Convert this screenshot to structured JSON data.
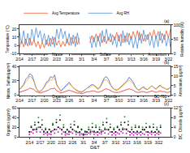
{
  "chart_data": [
    {
      "type": "line",
      "annotations": [
        "(a)"
      ],
      "y_label": "Temperature (°C)",
      "y2_label": "Relative humidity (%)",
      "categories": [
        "2/14",
        null,
        null,
        null,
        null,
        null,
        "2/17",
        null,
        null,
        null,
        null,
        null,
        "2/20",
        null,
        null,
        null,
        null,
        null,
        "2/23",
        null,
        null,
        null,
        null,
        null,
        "2/26",
        null,
        null,
        null,
        null,
        null,
        "3/1",
        null,
        null,
        null,
        null,
        null,
        "3/4",
        null,
        null,
        null,
        null,
        null,
        "3/7",
        null,
        null,
        null,
        null,
        null,
        "3/10",
        null,
        null,
        null,
        null,
        null,
        "3/13",
        null,
        null,
        null,
        null,
        null,
        "3/16",
        null,
        null,
        null,
        null,
        null,
        "3/19",
        null,
        null,
        null,
        null,
        null,
        "3/22",
        null
      ],
      "ylim": [
        -10,
        25
      ],
      "yticks": [
        -10,
        0,
        10,
        20
      ],
      "y2lim": [
        0,
        100
      ],
      "y2ticks": [
        0,
        50,
        100
      ],
      "grid": false,
      "legend": "top",
      "series": [
        {
          "name": "Avg Temperature",
          "color": "#f05a28",
          "values": [
            -3,
            6,
            -2,
            8,
            -1,
            9,
            0,
            7,
            -2,
            5,
            -4,
            4,
            -3,
            7,
            -1,
            9,
            1,
            10,
            0,
            6,
            -2,
            5,
            -1,
            8,
            0,
            10,
            2,
            11,
            1,
            9,
            null,
            null,
            null,
            null,
            3,
            12,
            4,
            14,
            5,
            15,
            3,
            11,
            2,
            10,
            4,
            13,
            6,
            16,
            5,
            14,
            3,
            12,
            4,
            15,
            7,
            17,
            8,
            18,
            6,
            14,
            5,
            13,
            7,
            16,
            9,
            19,
            8,
            17,
            6,
            15,
            7,
            18,
            9,
            20
          ]
        },
        {
          "name": "Avg RH",
          "color": "#4a90d9",
          "axis": "y2",
          "values": [
            75,
            35,
            80,
            30,
            70,
            28,
            85,
            45,
            90,
            55,
            80,
            40,
            70,
            30,
            65,
            25,
            60,
            22,
            85,
            50,
            88,
            52,
            78,
            35,
            70,
            28,
            65,
            24,
            72,
            32,
            null,
            null,
            null,
            null,
            60,
            20,
            58,
            22,
            62,
            25,
            80,
            40,
            85,
            45,
            70,
            30,
            60,
            22,
            65,
            26,
            80,
            38,
            72,
            30,
            60,
            20,
            55,
            18,
            75,
            35,
            82,
            42,
            68,
            28,
            58,
            20,
            62,
            24,
            78,
            36,
            66,
            26,
            60,
            22
          ]
        }
      ]
    },
    {
      "type": "line",
      "annotations": [
        "(b)"
      ],
      "y_label": "Nitrate, Sulfate(μg/m³)",
      "y2_label": "Ammonium (μg/m³)",
      "categories": [
        "2/14",
        null,
        null,
        null,
        null,
        null,
        "2/17",
        null,
        null,
        null,
        null,
        null,
        "2/20",
        null,
        null,
        null,
        null,
        null,
        "2/23",
        null,
        null,
        null,
        null,
        null,
        "2/26",
        null,
        null,
        null,
        null,
        null,
        "3/1",
        null,
        null,
        null,
        null,
        null,
        "3/4",
        null,
        null,
        null,
        null,
        null,
        "3/7",
        null,
        null,
        null,
        null,
        null,
        "3/10",
        null,
        null,
        null,
        null,
        null,
        "3/13",
        null,
        null,
        null,
        null,
        null,
        "3/16",
        null,
        null,
        null,
        null,
        null,
        "3/19",
        null,
        null,
        null,
        null,
        null,
        "3/22",
        null
      ],
      "ylim": [
        0,
        40
      ],
      "yticks": [
        0,
        20,
        40
      ],
      "y2lim": [
        0,
        15
      ],
      "y2ticks": [
        0,
        5,
        10,
        15
      ],
      "grid": false,
      "legend": "top",
      "series": [
        {
          "name": "Nitrate",
          "color": "#3a5fcd",
          "values": [
            8,
            12,
            15,
            22,
            25,
            30,
            28,
            20,
            10,
            6,
            5,
            8,
            12,
            18,
            20,
            26,
            24,
            28,
            15,
            10,
            6,
            9,
            12,
            16,
            18,
            14,
            10,
            8,
            6,
            5,
            4,
            6,
            8,
            10,
            12,
            15,
            14,
            11,
            9,
            12,
            18,
            24,
            26,
            22,
            15,
            10,
            8,
            7,
            9,
            12,
            14,
            18,
            20,
            25,
            22,
            18,
            12,
            8,
            7,
            10,
            12,
            9,
            8,
            11,
            13,
            10,
            9,
            12,
            14,
            11,
            10,
            8,
            9,
            11
          ]
        },
        {
          "name": "Sulfate",
          "color": "#e03030",
          "values": [
            4,
            5,
            6,
            7,
            8,
            10,
            9,
            8,
            5,
            4,
            3,
            4,
            5,
            6,
            7,
            9,
            9,
            10,
            6,
            5,
            3,
            4,
            5,
            6,
            7,
            6,
            5,
            4,
            3,
            3,
            2,
            3,
            4,
            5,
            5,
            6,
            6,
            5,
            4,
            5,
            6,
            8,
            9,
            8,
            6,
            5,
            4,
            4,
            4,
            5,
            6,
            7,
            8,
            9,
            8,
            7,
            5,
            4,
            4,
            5,
            5,
            4,
            4,
            5,
            6,
            5,
            4,
            5,
            6,
            5,
            5,
            4,
            4,
            5
          ]
        },
        {
          "name": "Ammonium",
          "color": "#f5a623",
          "axis": "y2",
          "values": [
            3,
            4,
            5,
            7,
            8,
            10,
            9,
            7,
            4,
            2,
            2,
            3,
            4,
            6,
            7,
            8,
            8,
            9,
            5,
            4,
            2,
            3,
            4,
            5,
            6,
            5,
            4,
            3,
            2,
            2,
            2,
            2,
            3,
            4,
            4,
            5,
            5,
            4,
            3,
            4,
            6,
            8,
            8,
            7,
            5,
            4,
            3,
            3,
            3,
            4,
            5,
            6,
            7,
            8,
            7,
            6,
            4,
            3,
            3,
            4,
            4,
            3,
            3,
            4,
            5,
            4,
            3,
            4,
            5,
            4,
            4,
            3,
            3,
            4
          ]
        }
      ]
    },
    {
      "type": "scatter",
      "marker": "circle",
      "annotations": [
        "(c)"
      ],
      "x_label": "D&T",
      "y_label": "Organics (μg/m³)",
      "y2_label": "BC, Chloride (μg/m³)",
      "categories": [
        "2/14",
        null,
        null,
        null,
        null,
        null,
        "2/17",
        null,
        null,
        null,
        null,
        null,
        "2/20",
        null,
        null,
        null,
        null,
        null,
        "2/23",
        null,
        null,
        null,
        null,
        null,
        "2/26",
        null,
        null,
        null,
        null,
        null,
        "3/1",
        null,
        null,
        null,
        null,
        null,
        "3/4",
        null,
        null,
        null,
        null,
        null,
        "3/7",
        null,
        null,
        null,
        null,
        null,
        "3/10",
        null,
        null,
        null,
        null,
        null,
        "3/13",
        null,
        null,
        null,
        null,
        null,
        "3/16",
        null,
        null,
        null,
        null,
        null,
        "3/19",
        null,
        null,
        null,
        null,
        null,
        "3/22",
        null
      ],
      "ylim": [
        0,
        60
      ],
      "yticks": [
        0,
        20,
        40,
        60
      ],
      "y2lim": [
        0,
        12
      ],
      "y2ticks": [
        0,
        4,
        8,
        12
      ],
      "grid": false,
      "legend": "top",
      "series": [
        {
          "name": "Organics",
          "color": "#2ca02c",
          "values": [
            10,
            22,
            14,
            30,
            18,
            40,
            20,
            35,
            12,
            18,
            8,
            15,
            12,
            28,
            16,
            36,
            20,
            45,
            14,
            25,
            8,
            14,
            12,
            26,
            16,
            32,
            12,
            22,
            8,
            16,
            6,
            12,
            10,
            20,
            14,
            28,
            12,
            24,
            10,
            20,
            14,
            30,
            18,
            38,
            14,
            26,
            10,
            18,
            10,
            22,
            14,
            30,
            18,
            42,
            16,
            32,
            10,
            20,
            10,
            24,
            12,
            22,
            10,
            20,
            14,
            28,
            10,
            22,
            12,
            26,
            10,
            20,
            12,
            24
          ]
        },
        {
          "name": "Chloride",
          "color": "#d020c0",
          "axis": "y2",
          "values": [
            1,
            2,
            1.5,
            3,
            2,
            4,
            2,
            3,
            1,
            1.5,
            0.8,
            1.2,
            1,
            2.5,
            1.5,
            3,
            2,
            3.5,
            1.2,
            2,
            0.8,
            1.2,
            1,
            2,
            1.5,
            2.5,
            1,
            1.8,
            0.8,
            1.2,
            0.6,
            1,
            1,
            1.6,
            1.2,
            2.2,
            1,
            1.8,
            0.8,
            1.5,
            1.2,
            2.4,
            1.6,
            3,
            1.2,
            2,
            0.8,
            1.4,
            0.8,
            1.6,
            1.2,
            2.2,
            1.6,
            3.2,
            1.4,
            2.4,
            0.8,
            1.4,
            0.8,
            1.6,
            1,
            1.6,
            0.8,
            1.4,
            1,
            2,
            0.8,
            1.6,
            1,
            1.8,
            0.8,
            1.4,
            1,
            1.6
          ]
        },
        {
          "name": "BC-781",
          "color": "#111111",
          "axis": "y2",
          "values": [
            2,
            4,
            3,
            5,
            3,
            6,
            4,
            5,
            2,
            3,
            2,
            3,
            2,
            5,
            3,
            6,
            4,
            7,
            3,
            4,
            2,
            3,
            2,
            4,
            3,
            5,
            2,
            4,
            2,
            3,
            1,
            2,
            2,
            3,
            2,
            4,
            2,
            4,
            2,
            3,
            2,
            5,
            3,
            6,
            3,
            4,
            2,
            3,
            2,
            4,
            3,
            5,
            3,
            6,
            3,
            5,
            2,
            3,
            2,
            4,
            2,
            4,
            2,
            3,
            3,
            4,
            2,
            4,
            2,
            4,
            2,
            3,
            2,
            4
          ]
        }
      ]
    }
  ]
}
